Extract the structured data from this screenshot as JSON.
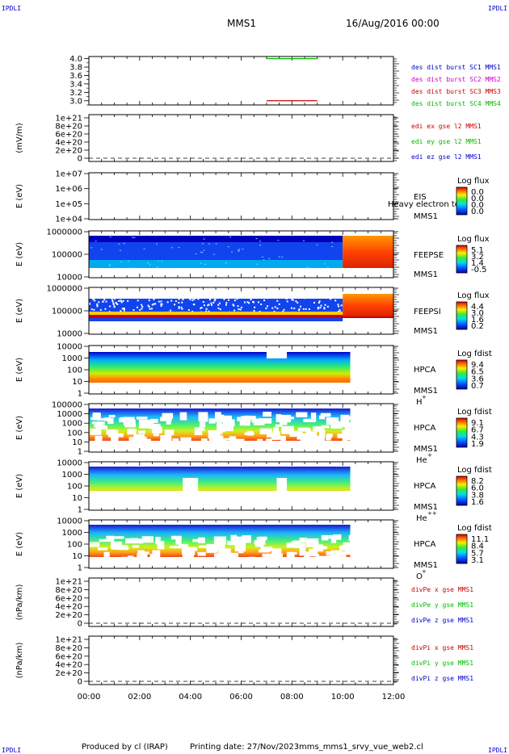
{
  "header": {
    "corner_tl": "IPDLI",
    "corner_tr": "IPDLI",
    "corner_bl": "IPDLI",
    "corner_br": "IPDLI",
    "spacecraft": "MMS1",
    "datetime": "16/Aug/2016 00:00"
  },
  "footer": {
    "produced_by": "Produced by cl (IRAP)",
    "printing_date": "Printing date: 27/Nov/2023",
    "file": "mms_mms1_srvy_vue_web2.cl"
  },
  "colors": {
    "mms1": "#0000cc",
    "mms2": "#cc00cc",
    "mms3": "#cc0000",
    "mms4": "#00bb00",
    "x_comp": "#cc0000",
    "y_comp": "#00bb00",
    "z_comp": "#0000cc"
  },
  "chart_data": [
    {
      "type": "line",
      "id": "des-dist",
      "ylim": [
        2.9,
        4.05
      ],
      "yticks": [
        "4.0",
        "3.8",
        "3.6",
        "3.4",
        "3.2",
        "3.0"
      ],
      "series": [
        {
          "name": "des dist burst SC1 MMS1",
          "x": [],
          "y": []
        },
        {
          "name": "des dist burst SC2 MMS2",
          "x": [],
          "y": []
        },
        {
          "name": "des dist burst SC3 MMS3",
          "x": [
            7.0,
            9.0
          ],
          "y": [
            3.0,
            3.0
          ]
        },
        {
          "name": "des dist burst SC4 MMS4",
          "x": [
            7.0,
            9.0
          ],
          "y": [
            4.0,
            4.0
          ]
        }
      ]
    },
    {
      "type": "line",
      "id": "edi-e",
      "ylabel": "(mV/m)",
      "yticks": [
        "1e+21",
        "8e+20",
        "6e+20",
        "4e+20",
        "2e+20",
        "0"
      ],
      "series": [
        {
          "name": "edi ex gse l2 MMS1",
          "x": [],
          "y": []
        },
        {
          "name": "edi ey gse l2 MMS1",
          "x": [],
          "y": []
        },
        {
          "name": "edi ez gse l2 MMS1",
          "x": [],
          "y": []
        }
      ]
    },
    {
      "type": "heatmap",
      "id": "eis",
      "ylabel": "E (eV)",
      "yticks": [
        "1e+07",
        "1e+06",
        "1e+05",
        "1e+04"
      ],
      "label": [
        "EIS",
        "MMS1"
      ],
      "overlay_text": "Heavy electron to",
      "colorbar": {
        "title": "Log flux",
        "ticks": [
          "0.0",
          "0.0",
          "0.0",
          "0.0"
        ]
      }
    },
    {
      "type": "heatmap",
      "id": "feepse",
      "ylabel": "E (eV)",
      "yticks": [
        "1000000",
        "100000",
        "10000"
      ],
      "label": [
        "FEEPSE",
        "MMS1"
      ],
      "colorbar": {
        "title": "Log flux",
        "ticks": [
          "5.1",
          "3.2",
          "1.4",
          "-0.5"
        ]
      },
      "x_range": [
        0.0,
        12.0
      ],
      "transition_hour": 10.0
    },
    {
      "type": "heatmap",
      "id": "feepsi",
      "ylabel": "E (eV)",
      "yticks": [
        "1000000",
        "100000",
        "10000"
      ],
      "label": [
        "FEEPSI",
        "MMS1"
      ],
      "colorbar": {
        "title": "Log flux",
        "ticks": [
          "4.4",
          "3.0",
          "1.6",
          "0.2"
        ]
      },
      "x_range": [
        0.0,
        12.0
      ],
      "transition_hour": 10.0
    },
    {
      "type": "heatmap",
      "id": "hpca-h",
      "ylabel": "E (eV)",
      "yticks": [
        "10000",
        "1000",
        "100",
        "10",
        "1"
      ],
      "label": [
        "HPCA",
        "MMS1"
      ],
      "species": "H",
      "charge": "+",
      "colorbar": {
        "title": "Log fdist",
        "ticks": [
          "9.4",
          "6.5",
          "3.6",
          "0.7"
        ]
      },
      "x_range": [
        0.0,
        10.3
      ]
    },
    {
      "type": "heatmap",
      "id": "hpca-he1",
      "ylabel": "E (eV)",
      "yticks": [
        "100000",
        "10000",
        "1000",
        "100",
        "10",
        "1"
      ],
      "label": [
        "HPCA",
        "MMS1"
      ],
      "species": "He",
      "charge": "+",
      "colorbar": {
        "title": "Log fdist",
        "ticks": [
          "9.1",
          "6.7",
          "4.3",
          "1.9"
        ]
      },
      "x_range": [
        0.0,
        10.3
      ]
    },
    {
      "type": "heatmap",
      "id": "hpca-he2",
      "ylabel": "E (eV)",
      "yticks": [
        "10000",
        "1000",
        "100",
        "10",
        "1"
      ],
      "label": [
        "HPCA",
        "MMS1"
      ],
      "species": "He",
      "charge": "++",
      "colorbar": {
        "title": "Log fdist",
        "ticks": [
          "8.2",
          "6.0",
          "3.8",
          "1.6"
        ]
      },
      "x_range": [
        0.0,
        10.3
      ]
    },
    {
      "type": "heatmap",
      "id": "hpca-o",
      "ylabel": "E (eV)",
      "yticks": [
        "10000",
        "1000",
        "100",
        "10",
        "1"
      ],
      "label": [
        "HPCA",
        "MMS1"
      ],
      "species": "O",
      "charge": "+",
      "colorbar": {
        "title": "Log fdist",
        "ticks": [
          "11.1",
          "8.4",
          "5.7",
          "3.1"
        ]
      },
      "x_range": [
        0.0,
        10.3
      ]
    },
    {
      "type": "line",
      "id": "divpe",
      "ylabel": "(nPa/km)",
      "yticks": [
        "1e+21",
        "8e+20",
        "6e+20",
        "4e+20",
        "2e+20",
        "0"
      ],
      "series": [
        {
          "name": "divPe x gse MMS1",
          "x": [],
          "y": []
        },
        {
          "name": "divPe y gse MMS1",
          "x": [],
          "y": []
        },
        {
          "name": "divPe z gse MMS1",
          "x": [],
          "y": []
        }
      ]
    },
    {
      "type": "line",
      "id": "divpi",
      "ylabel": "(nPa/km)",
      "yticks": [
        "1e+21",
        "8e+20",
        "6e+20",
        "4e+20",
        "2e+20",
        "0"
      ],
      "series": [
        {
          "name": "divPi x gse MMS1",
          "x": [],
          "y": []
        },
        {
          "name": "divPi y gse MMS1",
          "x": [],
          "y": []
        },
        {
          "name": "divPi z gse MMS1",
          "x": [],
          "y": []
        }
      ]
    }
  ],
  "xaxis": {
    "range": [
      0,
      12
    ],
    "ticks": [
      "00:00",
      "02:00",
      "04:00",
      "06:00",
      "08:00",
      "10:00",
      "12:00"
    ]
  }
}
